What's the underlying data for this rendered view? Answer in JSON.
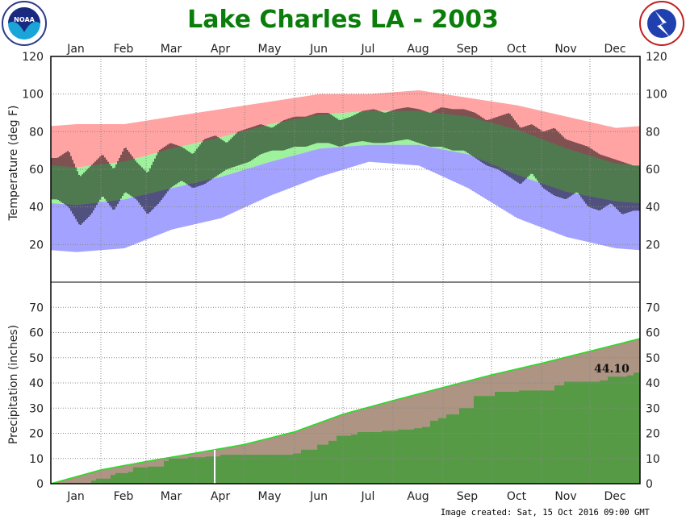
{
  "chart_data": [
    {
      "type": "bar",
      "title": "Lake Charles LA - 2003",
      "ylabel": "Temperature (deg F)",
      "ylim": [
        0,
        120
      ],
      "yticks": [
        20,
        40,
        60,
        80,
        100,
        120
      ],
      "months": [
        "Jan",
        "Feb",
        "Mar",
        "Apr",
        "May",
        "Jun",
        "Jul",
        "Aug",
        "Sep",
        "Oct",
        "Nov",
        "Dec"
      ],
      "grid": true,
      "series_note": "record range (pink/blue), normal range (green), observed daily high-low (dark bars)",
      "record_high_monthly": [
        84,
        84,
        88,
        92,
        96,
        100,
        100,
        102,
        98,
        94,
        88,
        82
      ],
      "normal_high_monthly": [
        61,
        64,
        71,
        77,
        84,
        89,
        91,
        91,
        88,
        81,
        71,
        63
      ],
      "normal_low_monthly": [
        41,
        44,
        50,
        56,
        64,
        71,
        73,
        73,
        68,
        57,
        48,
        43
      ],
      "record_low_monthly": [
        16,
        18,
        28,
        34,
        46,
        56,
        64,
        62,
        50,
        34,
        24,
        18
      ],
      "observed_high_weekly": [
        66,
        70,
        56,
        62,
        68,
        60,
        72,
        64,
        58,
        70,
        74,
        72,
        68,
        76,
        78,
        74,
        80,
        82,
        84,
        82,
        86,
        88,
        88,
        90,
        90,
        86,
        88,
        91,
        92,
        90,
        92,
        93,
        92,
        90,
        93,
        92,
        92,
        90,
        86,
        88,
        90,
        82,
        84,
        80,
        82,
        76,
        74,
        72,
        68,
        66,
        64,
        62
      ],
      "observed_low_weekly": [
        44,
        40,
        30,
        36,
        46,
        38,
        48,
        44,
        36,
        42,
        50,
        54,
        50,
        52,
        56,
        60,
        62,
        64,
        68,
        70,
        70,
        72,
        72,
        74,
        74,
        72,
        74,
        75,
        74,
        74,
        75,
        76,
        74,
        72,
        72,
        70,
        70,
        66,
        62,
        60,
        56,
        52,
        58,
        50,
        46,
        44,
        48,
        40,
        38,
        42,
        36,
        38
      ],
      "colors": {
        "record_high": "#ffa3a3",
        "normal": "#9ef29e",
        "record_low": "#a3a3ff",
        "observed_overlay": "#000000"
      }
    },
    {
      "type": "area",
      "ylabel": "Precipitation (inches)",
      "ylim": [
        0,
        80
      ],
      "yticks": [
        0,
        10,
        20,
        30,
        40,
        50,
        60,
        70
      ],
      "months": [
        "Jan",
        "Feb",
        "Mar",
        "Apr",
        "May",
        "Jun",
        "Jul",
        "Aug",
        "Sep",
        "Oct",
        "Nov",
        "Dec"
      ],
      "normal_cumulative_month_end": [
        5.5,
        8.8,
        12.2,
        15.6,
        20.6,
        27.6,
        33.0,
        38.2,
        43.2,
        47.8,
        52.6,
        57.6
      ],
      "observed_cumulative_steps": [
        [
          0,
          0
        ],
        [
          10,
          0.3
        ],
        [
          25,
          1.2
        ],
        [
          28,
          2.0
        ],
        [
          37,
          3.5
        ],
        [
          40,
          4.2
        ],
        [
          48,
          4.7
        ],
        [
          51,
          6.5
        ],
        [
          60,
          6.8
        ],
        [
          70,
          9.0
        ],
        [
          73,
          10.0
        ],
        [
          85,
          10.5
        ],
        [
          96,
          10.8
        ],
        [
          105,
          11.5
        ],
        [
          150,
          12.0
        ],
        [
          155,
          13.5
        ],
        [
          165,
          15.5
        ],
        [
          172,
          17.0
        ],
        [
          177,
          19.0
        ],
        [
          186,
          19.5
        ],
        [
          190,
          20.5
        ],
        [
          205,
          21.0
        ],
        [
          215,
          21.5
        ],
        [
          225,
          22.0
        ],
        [
          230,
          22.5
        ],
        [
          235,
          25.0
        ],
        [
          240,
          26.0
        ],
        [
          245,
          27.5
        ],
        [
          253,
          30.0
        ],
        [
          262,
          34.8
        ],
        [
          275,
          36.5
        ],
        [
          290,
          37.0
        ],
        [
          312,
          39.0
        ],
        [
          318,
          40.5
        ],
        [
          340,
          41.0
        ],
        [
          345,
          42.5
        ],
        [
          357,
          43.0
        ],
        [
          361,
          44.1
        ]
      ],
      "missing_days": [
        101
      ],
      "total_label": "44.10",
      "colors": {
        "normal_area": "#ad9483",
        "observed_area": "#569a46",
        "normal_line": "#22e022"
      }
    }
  ],
  "title": "Lake Charles LA - 2003",
  "footer": "Image created: Sat, 15 Oct 2016 09:00 GMT",
  "logos": {
    "left": "NOAA",
    "right": "NATIONAL WEATHER SERVICE"
  }
}
